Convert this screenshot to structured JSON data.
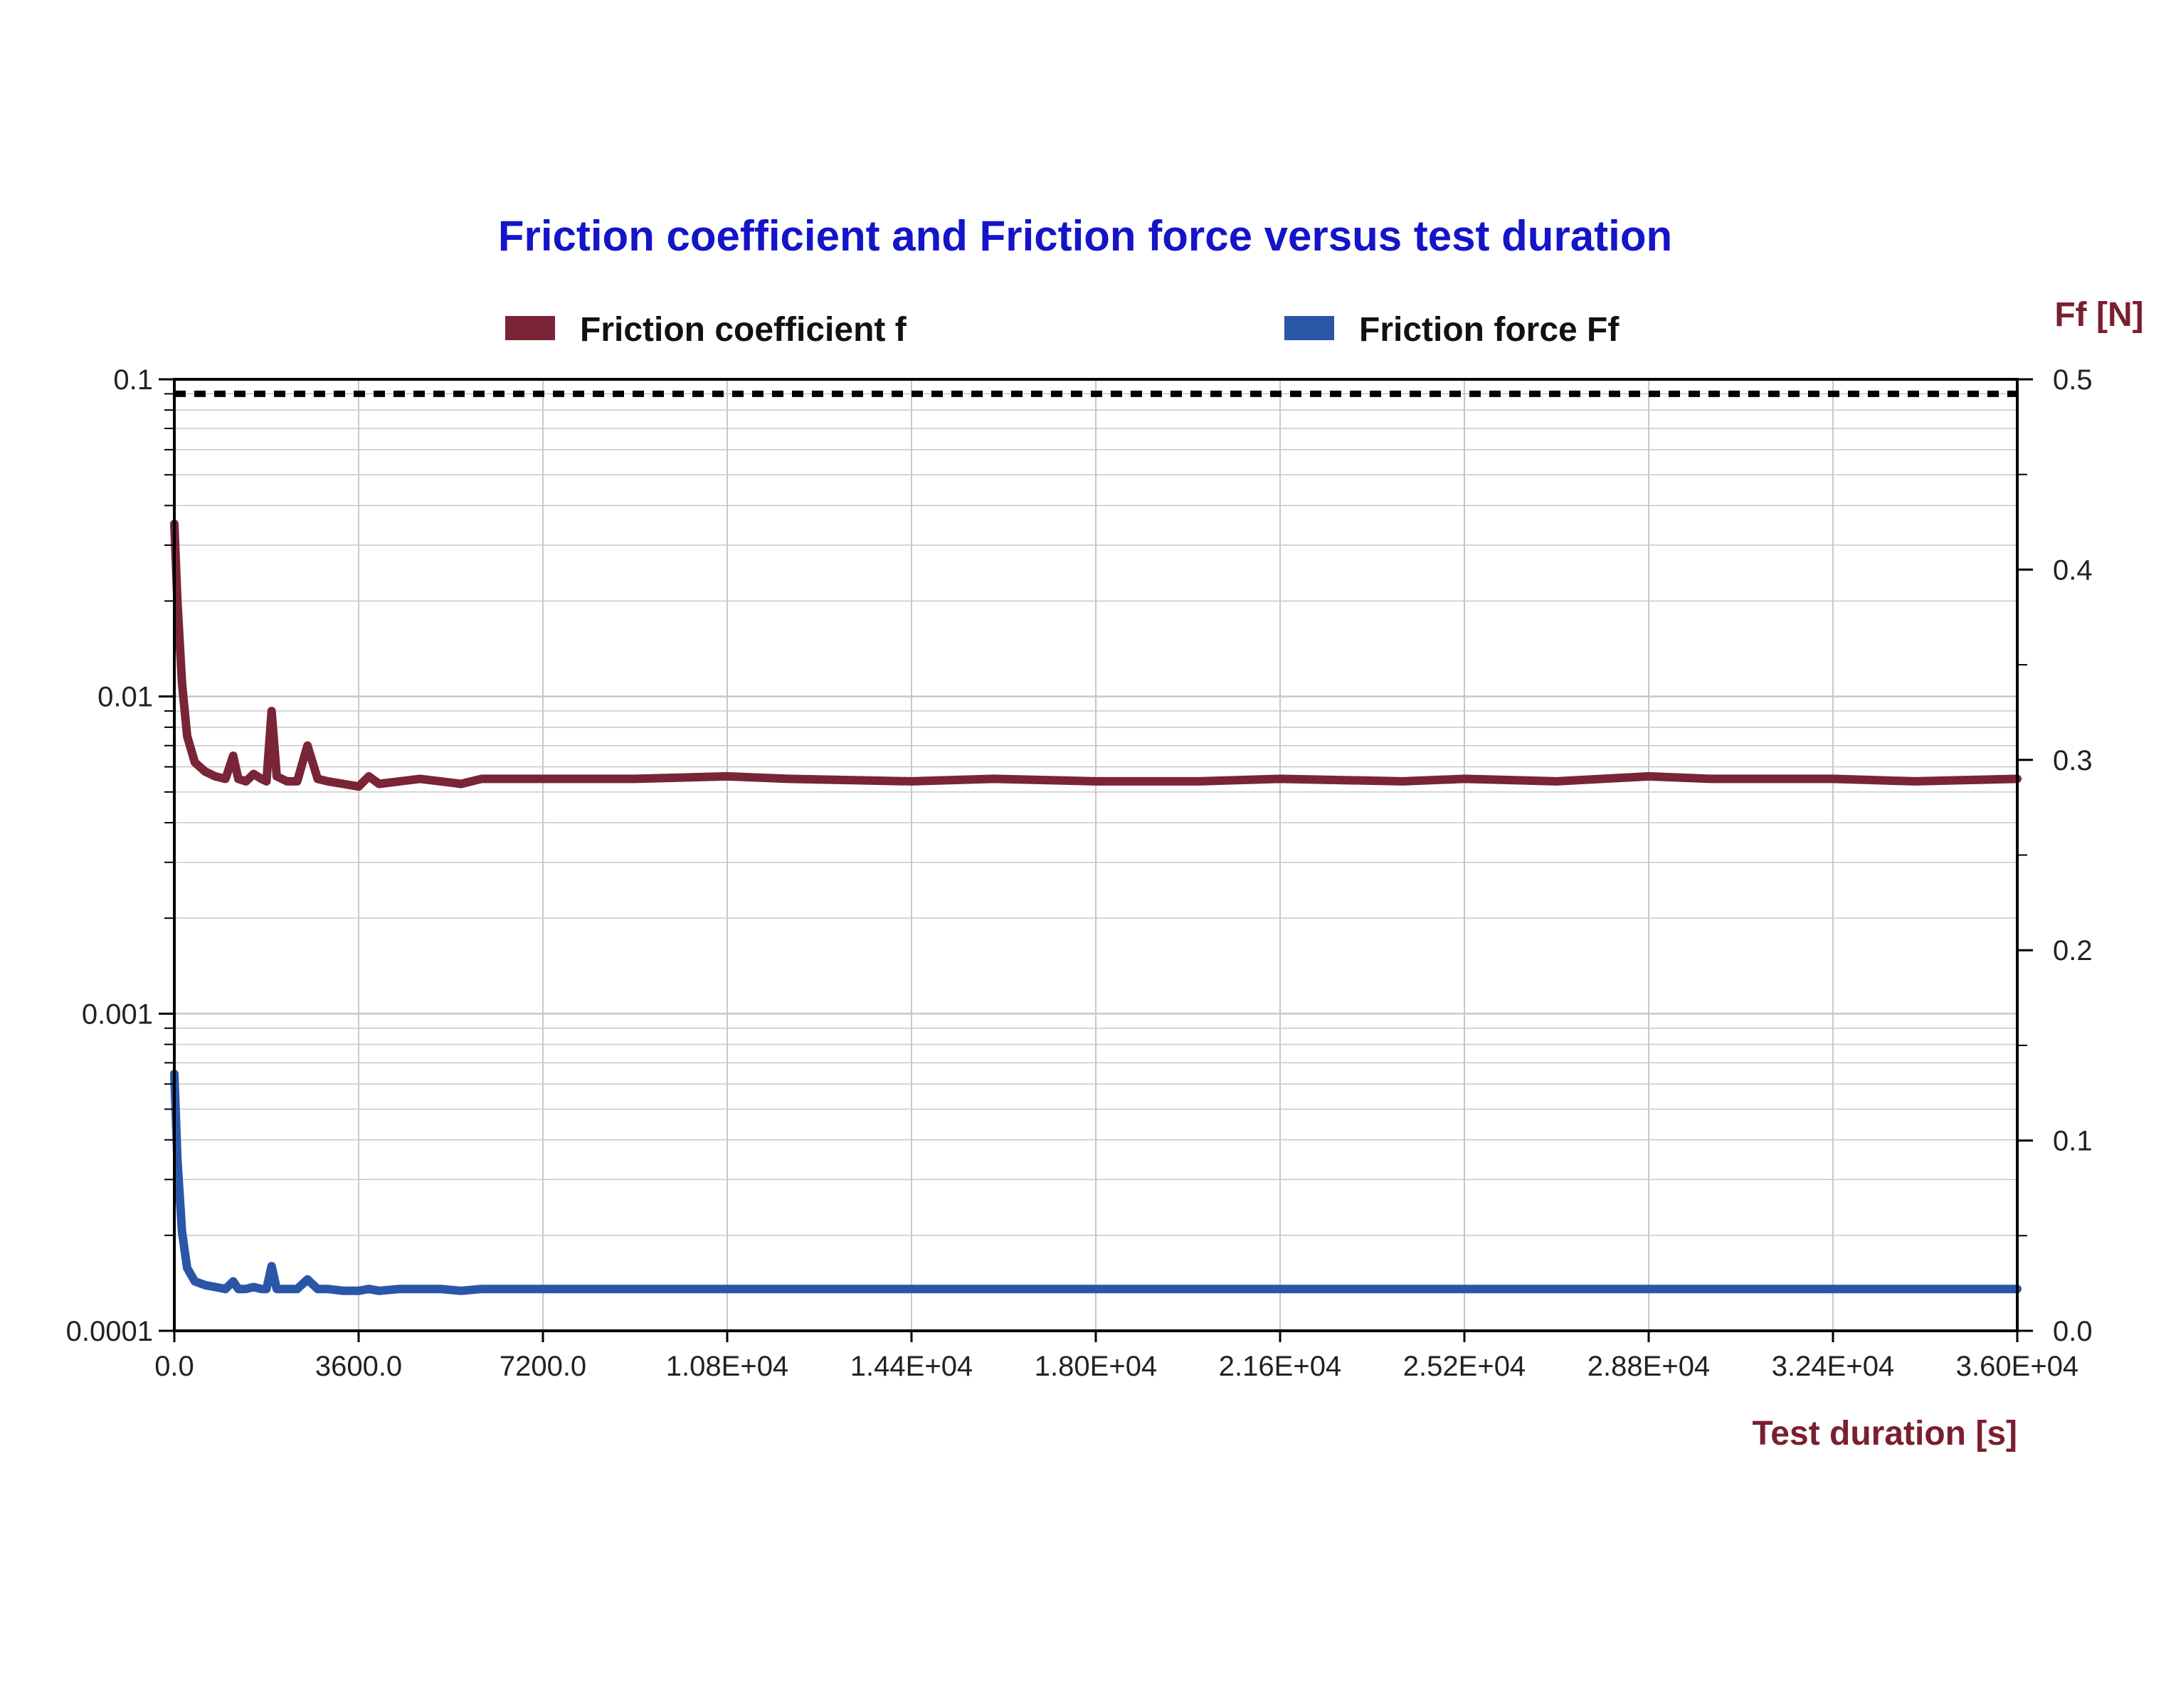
{
  "chart_data": {
    "type": "line",
    "title": "Friction coefficient and Friction force versus test duration",
    "xlabel": "Test duration [s]",
    "ylabel": "",
    "y2label": "Ff [N]",
    "xlim": [
      0,
      36000
    ],
    "ylim": [
      0.0001,
      0.1
    ],
    "y_scale": "log",
    "y2lim": [
      0,
      0.5
    ],
    "grid": true,
    "legend_position": "top",
    "x_ticks": [
      "0.0",
      "3600.0",
      "7200.0",
      "1.08E+04",
      "1.44E+04",
      "1.80E+04",
      "2.16E+04",
      "2.52E+04",
      "2.88E+04",
      "3.24E+04",
      "3.60E+04"
    ],
    "y_ticks": [
      "0.1",
      "0.01",
      "0.001",
      "0.0001"
    ],
    "y2_ticks": [
      "0.5",
      "0.4",
      "0.3",
      "0.2",
      "0.1",
      "0.0"
    ],
    "colors": {
      "title": "#1414c8",
      "axis_title": "#7a1f2e",
      "friction_coefficient": "#7a2438",
      "friction_force": "#2a56a8",
      "reference_line": "#000000",
      "grid": "#c8c8c8"
    },
    "reference_line": {
      "axis": "left",
      "value": 0.09,
      "style": "dashed"
    },
    "series": [
      {
        "name": "Friction coefficient f",
        "axis": "left",
        "x": [
          0,
          60,
          150,
          250,
          400,
          600,
          800,
          1000,
          1150,
          1250,
          1400,
          1550,
          1700,
          1800,
          1900,
          2000,
          2200,
          2400,
          2600,
          2800,
          3000,
          3300,
          3600,
          3800,
          4000,
          4400,
          4800,
          5200,
          5600,
          6000,
          7000,
          8000,
          9000,
          10800,
          12000,
          14400,
          16000,
          18000,
          20000,
          21600,
          24000,
          25200,
          27000,
          28800,
          30000,
          32400,
          34000,
          36000
        ],
        "y": [
          0.035,
          0.02,
          0.011,
          0.0075,
          0.0062,
          0.0058,
          0.0056,
          0.0055,
          0.0065,
          0.0055,
          0.0054,
          0.0057,
          0.0055,
          0.0054,
          0.009,
          0.0056,
          0.0054,
          0.0054,
          0.007,
          0.0055,
          0.0054,
          0.0053,
          0.0052,
          0.0056,
          0.0053,
          0.0054,
          0.0055,
          0.0054,
          0.0053,
          0.0055,
          0.0055,
          0.0055,
          0.0055,
          0.0056,
          0.0055,
          0.0054,
          0.0055,
          0.0054,
          0.0054,
          0.0055,
          0.0054,
          0.0055,
          0.0054,
          0.0056,
          0.0055,
          0.0055,
          0.0054,
          0.0055
        ]
      },
      {
        "name": "Friction force Ff",
        "axis": "right",
        "x": [
          0,
          60,
          150,
          250,
          400,
          600,
          800,
          1000,
          1150,
          1250,
          1400,
          1550,
          1700,
          1800,
          1900,
          2000,
          2200,
          2400,
          2600,
          2800,
          3000,
          3300,
          3600,
          3800,
          4000,
          4400,
          4800,
          5200,
          5600,
          6000,
          7000,
          8000,
          9000,
          10800,
          12000,
          14400,
          16000,
          18000,
          20000,
          21600,
          24000,
          25200,
          27000,
          28800,
          30000,
          32400,
          34000,
          36000
        ],
        "y": [
          0.135,
          0.09,
          0.052,
          0.033,
          0.026,
          0.024,
          0.023,
          0.022,
          0.026,
          0.022,
          0.022,
          0.023,
          0.022,
          0.022,
          0.034,
          0.022,
          0.022,
          0.022,
          0.027,
          0.022,
          0.022,
          0.021,
          0.021,
          0.022,
          0.021,
          0.022,
          0.022,
          0.022,
          0.021,
          0.022,
          0.022,
          0.022,
          0.022,
          0.022,
          0.022,
          0.022,
          0.022,
          0.022,
          0.022,
          0.022,
          0.022,
          0.022,
          0.022,
          0.022,
          0.022,
          0.022,
          0.022,
          0.022
        ]
      }
    ]
  }
}
